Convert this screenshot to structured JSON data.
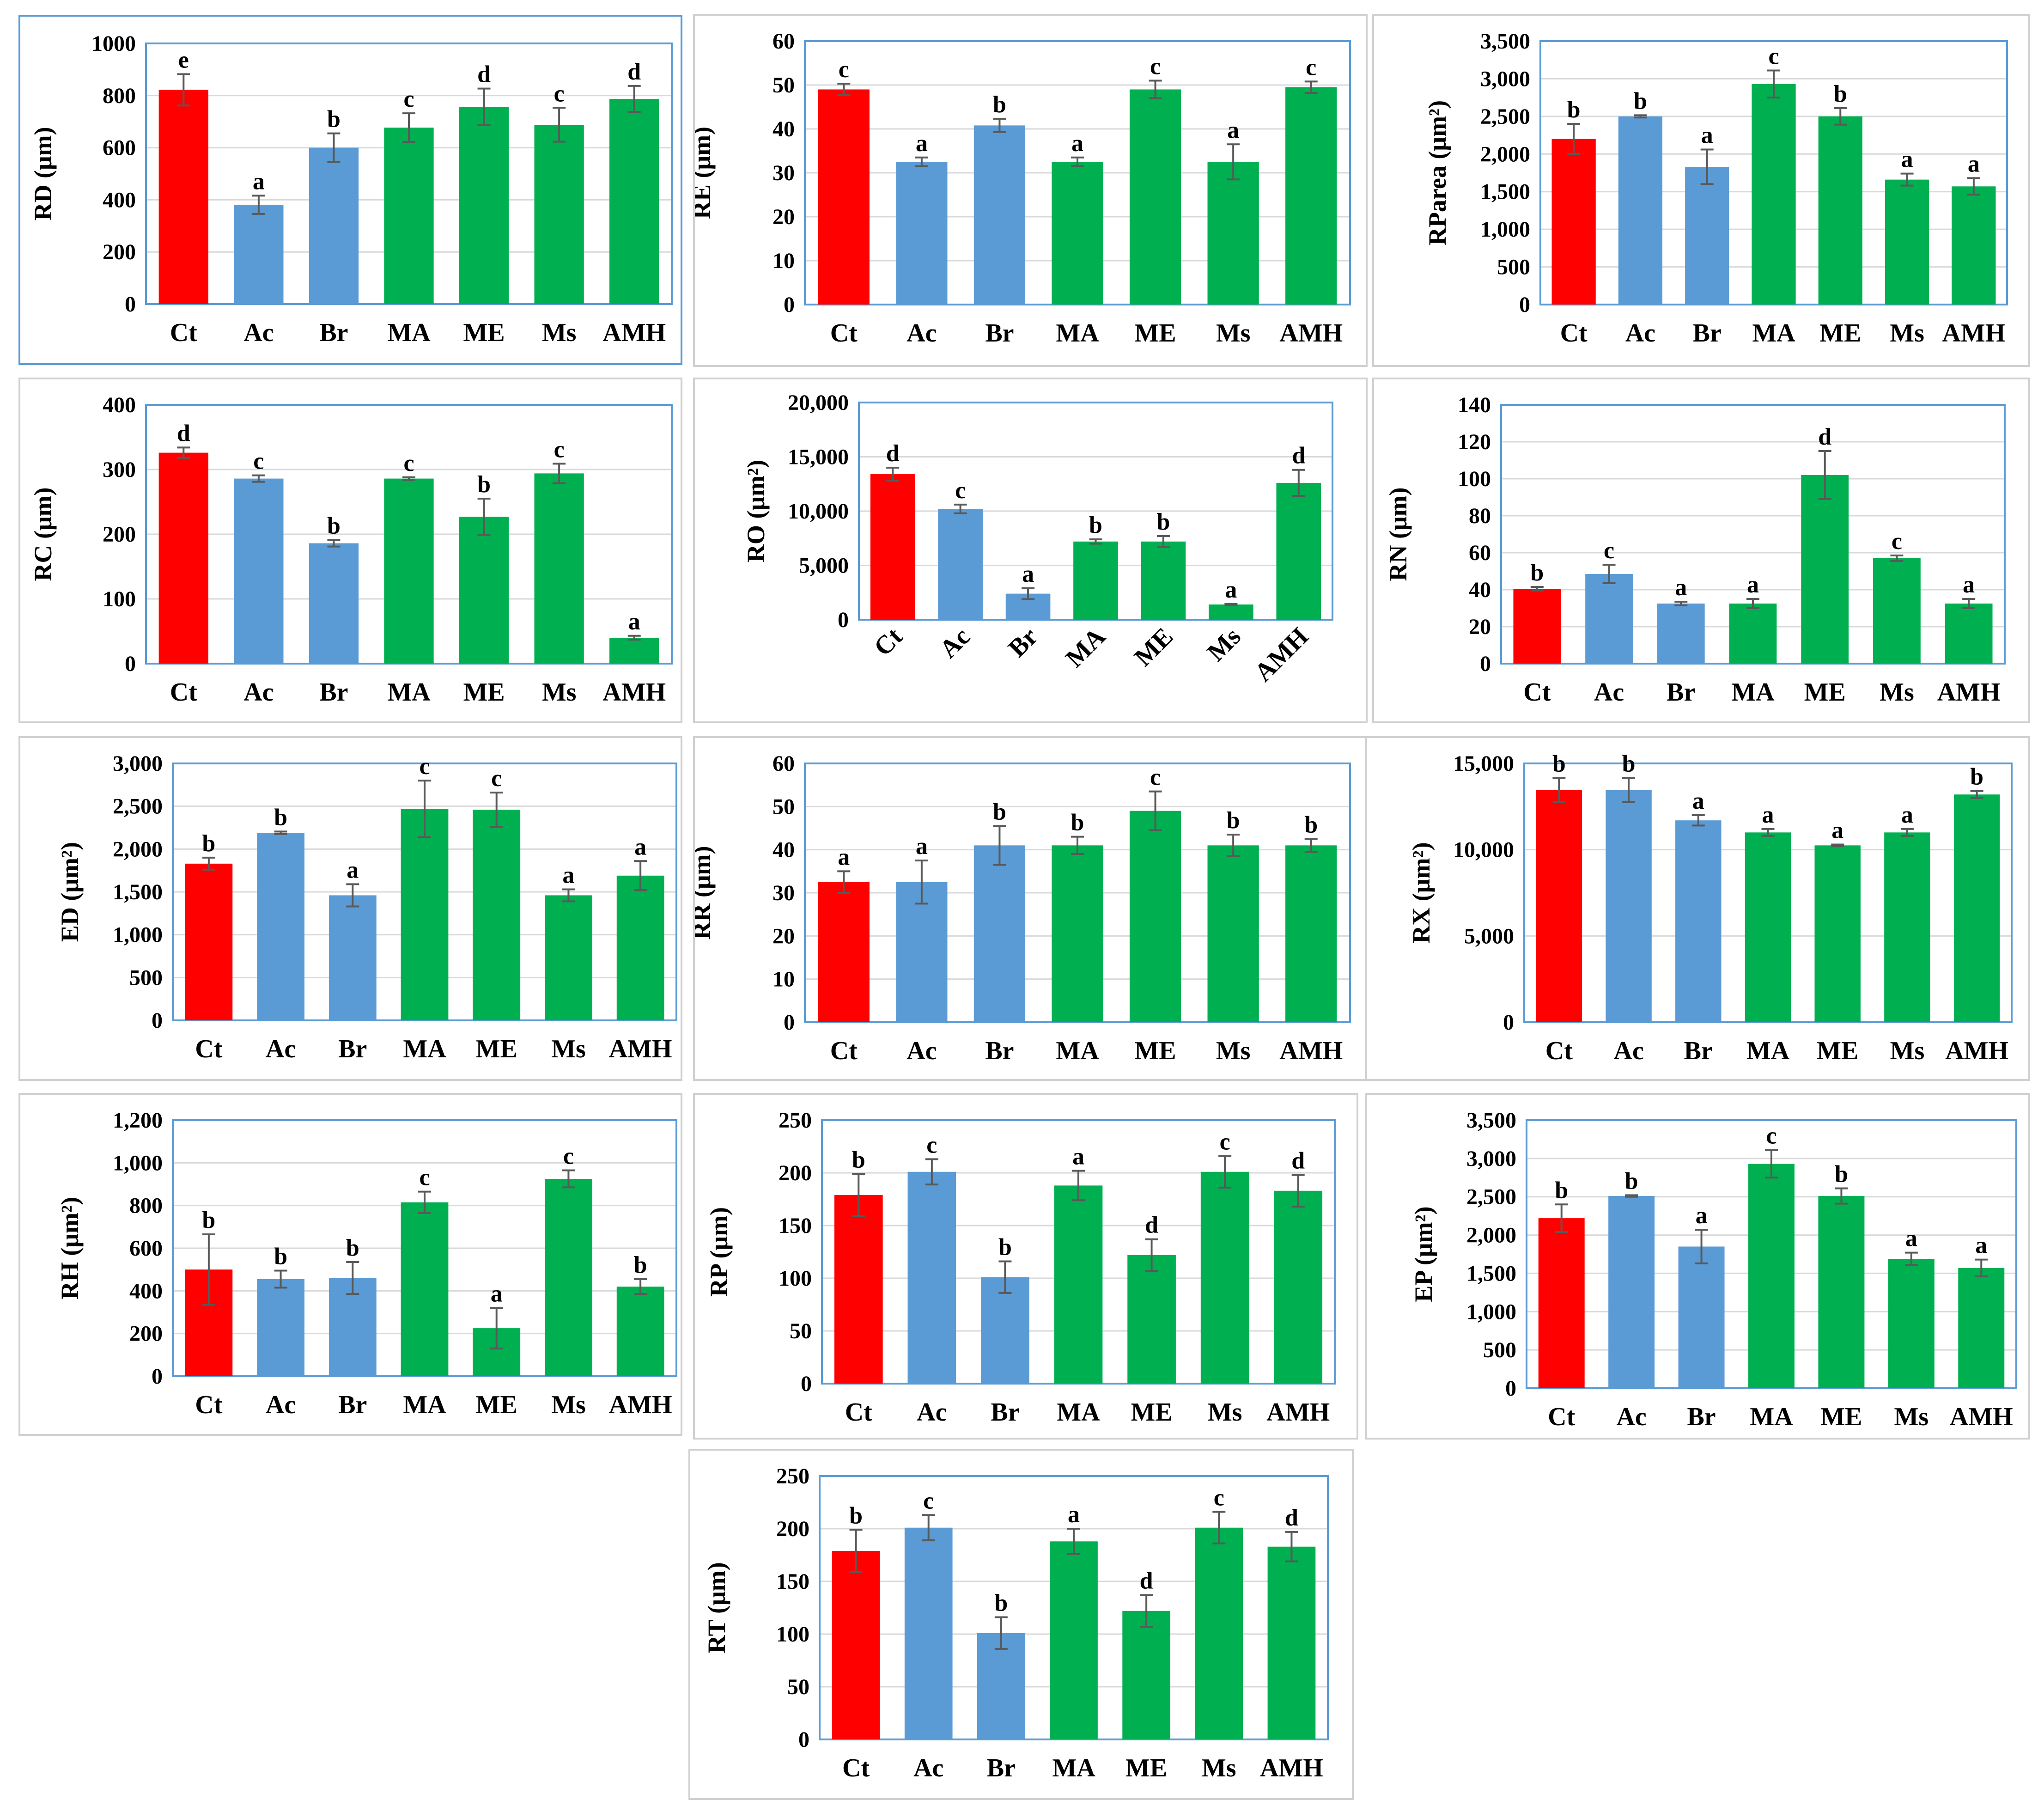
{
  "colors": {
    "control": "#ff0000",
    "group_b": "#5b9bd5",
    "group_m": "#00b050",
    "frame": "#5b9bd5",
    "grid": "#d9d9d9",
    "error_bar": "#595959"
  },
  "categories": [
    "Ct",
    "Ac",
    "Br",
    "MA",
    "ME",
    "Ms",
    "AMH"
  ],
  "chart_data": [
    {
      "id": "RD",
      "type": "bar",
      "ylabel": "RD (μm)",
      "ylim": [
        0,
        1000
      ],
      "ytick_labels": [
        "0",
        "200",
        "400",
        "600",
        "800",
        "1000"
      ],
      "values": [
        822,
        381,
        600,
        677,
        757,
        688,
        787
      ],
      "errors": [
        60,
        35,
        55,
        55,
        70,
        65,
        50
      ],
      "letters": [
        "e",
        "a",
        "b",
        "c",
        "d",
        "c",
        "d"
      ]
    },
    {
      "id": "RE",
      "type": "bar",
      "ylabel": "RE (μm)",
      "ylim": [
        0,
        60
      ],
      "ytick_labels": [
        "0",
        "10",
        "20",
        "30",
        "40",
        "50",
        "60"
      ],
      "values": [
        49,
        32.5,
        40.8,
        32.5,
        49,
        32.5,
        49.5
      ],
      "errors": [
        1.3,
        1.0,
        1.5,
        1.0,
        2.0,
        4.0,
        1.3
      ],
      "letters": [
        "c",
        "a",
        "b",
        "a",
        "c",
        "a",
        "c"
      ]
    },
    {
      "id": "RParea",
      "type": "bar",
      "ylabel": "RParea (μm²)",
      "ylim": [
        0,
        3500
      ],
      "ytick_labels": [
        "0",
        "500",
        "1,000",
        "1,500",
        "2,000",
        "2,500",
        "3,000",
        "3,500"
      ],
      "values": [
        2200,
        2500,
        1830,
        2930,
        2500,
        1660,
        1570
      ],
      "errors": [
        200,
        15,
        230,
        180,
        110,
        80,
        110
      ],
      "letters": [
        "b",
        "b",
        "a",
        "c",
        "b",
        "a",
        "a"
      ]
    },
    {
      "id": "RC",
      "type": "bar",
      "ylabel": "RC (μm)",
      "ylim": [
        0,
        400
      ],
      "ytick_labels": [
        "0",
        "100",
        "200",
        "300",
        "400"
      ],
      "values": [
        326,
        286,
        186,
        286,
        227,
        294,
        40
      ],
      "errors": [
        8,
        5,
        5,
        2,
        28,
        15,
        3
      ],
      "letters": [
        "d",
        "c",
        "b",
        "c",
        "b",
        "c",
        "a"
      ]
    },
    {
      "id": "RO",
      "type": "bar",
      "ylabel": "RO (μm²)",
      "ylim": [
        0,
        20000
      ],
      "ytick_labels": [
        "0",
        "5,000",
        "10,000",
        "15,000",
        "20,000"
      ],
      "values": [
        13400,
        10200,
        2400,
        7200,
        7200,
        1400,
        12600
      ],
      "errors": [
        600,
        400,
        500,
        200,
        500,
        50,
        1200
      ],
      "letters": [
        "d",
        "c",
        "a",
        "b",
        "b",
        "a",
        "d"
      ],
      "rotated_x_labels": true
    },
    {
      "id": "RN",
      "type": "bar",
      "ylabel": "RN (μm)",
      "ylim": [
        0,
        140
      ],
      "ytick_labels": [
        "0",
        "20",
        "40",
        "60",
        "80",
        "100",
        "120",
        "140"
      ],
      "values": [
        40.5,
        48.5,
        32.5,
        32.5,
        102,
        57,
        32.5
      ],
      "errors": [
        1,
        5,
        1,
        2.5,
        13,
        1.5,
        2.5
      ],
      "letters": [
        "b",
        "c",
        "a",
        "a",
        "d",
        "c",
        "a"
      ]
    },
    {
      "id": "ED",
      "type": "bar",
      "ylabel": "ED (μm²)",
      "ylim": [
        0,
        3000
      ],
      "ytick_labels": [
        "0",
        "500",
        "1,000",
        "1,500",
        "2,000",
        "2,500",
        "3,000"
      ],
      "values": [
        1830,
        2190,
        1460,
        2470,
        2460,
        1460,
        1690
      ],
      "errors": [
        70,
        15,
        130,
        330,
        200,
        70,
        170
      ],
      "letters": [
        "b",
        "b",
        "a",
        "c",
        "c",
        "a",
        "a"
      ]
    },
    {
      "id": "RR",
      "type": "bar",
      "ylabel": "RR (μm)",
      "ylim": [
        0,
        60
      ],
      "ytick_labels": [
        "0",
        "10",
        "20",
        "30",
        "40",
        "50",
        "60"
      ],
      "values": [
        32.5,
        32.5,
        41,
        41,
        49,
        41,
        41
      ],
      "errors": [
        2.5,
        5,
        4.5,
        2,
        4.5,
        2.5,
        1.5
      ],
      "letters": [
        "a",
        "a",
        "b",
        "b",
        "c",
        "b",
        "b"
      ]
    },
    {
      "id": "RX",
      "type": "bar",
      "ylabel": "RX (μm²)",
      "ylim": [
        0,
        15000
      ],
      "ytick_labels": [
        "0",
        "5,000",
        "10,000",
        "15,000"
      ],
      "values": [
        13450,
        13450,
        11700,
        11000,
        10250,
        11000,
        13200
      ],
      "errors": [
        700,
        700,
        300,
        200,
        50,
        200,
        200
      ],
      "letters": [
        "b",
        "b",
        "a",
        "a",
        "a",
        "a",
        "b"
      ]
    },
    {
      "id": "RH",
      "type": "bar",
      "ylabel": "RH (μm²)",
      "ylim": [
        0,
        1200
      ],
      "ytick_labels": [
        "0",
        "200",
        "400",
        "600",
        "800",
        "1,000",
        "1,200"
      ],
      "values": [
        500,
        455,
        460,
        815,
        225,
        925,
        420
      ],
      "errors": [
        165,
        40,
        75,
        50,
        95,
        40,
        35
      ],
      "letters": [
        "b",
        "b",
        "b",
        "c",
        "a",
        "c",
        "b"
      ]
    },
    {
      "id": "RP",
      "type": "bar",
      "ylabel": "RP (μm)",
      "ylim": [
        0,
        250
      ],
      "ytick_labels": [
        "0",
        "50",
        "100",
        "150",
        "200",
        "250"
      ],
      "values": [
        179,
        201,
        101,
        188,
        122,
        201,
        183
      ],
      "errors": [
        20,
        12,
        15,
        14,
        15,
        15,
        15
      ],
      "letters": [
        "b",
        "c",
        "b",
        "a",
        "d",
        "c",
        "d"
      ]
    },
    {
      "id": "EP",
      "type": "bar",
      "ylabel": "EP (μm²)",
      "ylim": [
        0,
        3500
      ],
      "ytick_labels": [
        "0",
        "500",
        "1,000",
        "1,500",
        "2,000",
        "2,500",
        "3,000",
        "3,500"
      ],
      "values": [
        2220,
        2510,
        1850,
        2930,
        2510,
        1690,
        1570
      ],
      "errors": [
        180,
        10,
        220,
        180,
        100,
        80,
        110
      ],
      "letters": [
        "b",
        "b",
        "a",
        "c",
        "b",
        "a",
        "a"
      ]
    },
    {
      "id": "RT",
      "type": "bar",
      "ylabel": "RT (μm)",
      "ylim": [
        0,
        250
      ],
      "ytick_labels": [
        "0",
        "50",
        "100",
        "150",
        "200",
        "250"
      ],
      "values": [
        179,
        201,
        101,
        188,
        122,
        201,
        183
      ],
      "errors": [
        20,
        12,
        15,
        12,
        15,
        15,
        14
      ],
      "letters": [
        "b",
        "c",
        "b",
        "a",
        "d",
        "c",
        "d"
      ]
    }
  ]
}
